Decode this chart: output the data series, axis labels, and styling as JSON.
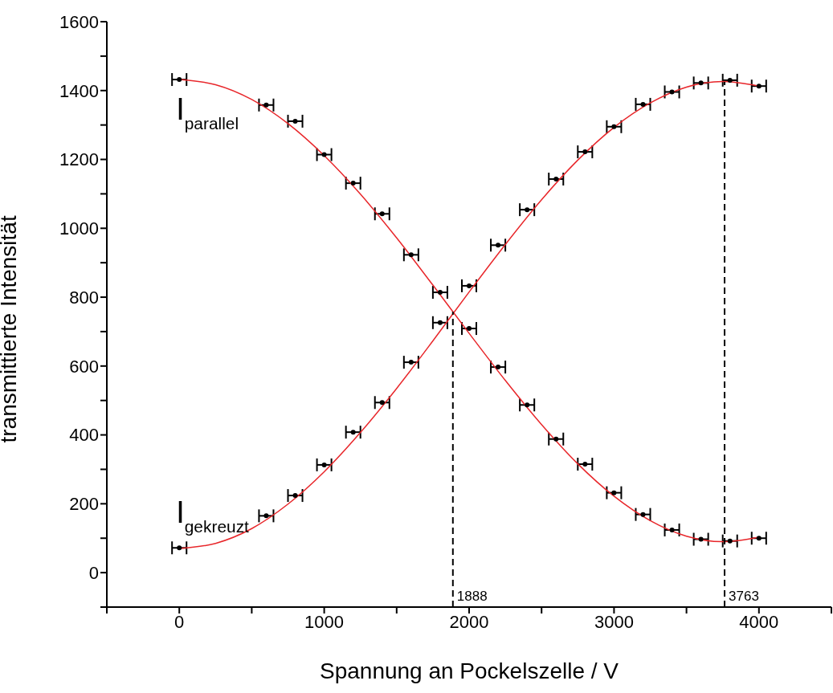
{
  "chart_data": {
    "type": "scatter",
    "xlabel": "Spannung an Pockelszelle / V",
    "ylabel": "transmittierte Intensität",
    "x": [
      0,
      600,
      800,
      1000,
      1200,
      1400,
      1600,
      1800,
      2000,
      2200,
      2400,
      2600,
      2800,
      3000,
      3200,
      3400,
      3600,
      3800,
      4000
    ],
    "series": [
      {
        "color": "#000000",
        "values": [
          1432,
          1358,
          1311,
          1214,
          1131,
          1042,
          923,
          814,
          709,
          597,
          487,
          388,
          315,
          232,
          169,
          124,
          97,
          92,
          100
        ],
        "xerrors": [
          50,
          50,
          50,
          50,
          50,
          50,
          50,
          50,
          50,
          50,
          50,
          50,
          50,
          50,
          50,
          50,
          50,
          50,
          50
        ]
      },
      {
        "color": "#000000",
        "values": [
          72,
          165,
          224,
          313,
          408,
          494,
          611,
          726,
          833,
          951,
          1054,
          1143,
          1222,
          1295,
          1360,
          1396,
          1422,
          1430,
          1413
        ],
        "xerrors": [
          50,
          50,
          50,
          50,
          50,
          50,
          50,
          50,
          50,
          50,
          50,
          50,
          50,
          50,
          50,
          50,
          50,
          50,
          50
        ]
      },
      {
        "type": "line",
        "color": "#e8262a",
        "marker": "none",
        "x": [
          0,
          250,
          500,
          750,
          1000,
          1250,
          1500,
          1750,
          2000,
          2250,
          2500,
          2750,
          3000,
          3250,
          3500,
          3750,
          4000
        ],
        "values": [
          1432,
          1417,
          1374,
          1304,
          1211,
          1099,
          972,
          835,
          695,
          558,
          430,
          316,
          222,
          151,
          106,
          90,
          103
        ]
      },
      {
        "type": "line",
        "color": "#e8262a",
        "marker": "none",
        "x": [
          0,
          250,
          500,
          750,
          1000,
          1250,
          1500,
          1750,
          2000,
          2250,
          2500,
          2750,
          3000,
          3250,
          3500,
          3750,
          4000
        ],
        "values": [
          70,
          85,
          128,
          199,
          293,
          407,
          535,
          673,
          815,
          953,
          1083,
          1198,
          1293,
          1364,
          1410,
          1426,
          1413
        ]
      }
    ],
    "xlim": [
      -500,
      4500
    ],
    "xticks": [
      {
        "value": -500,
        "label": null
      },
      0,
      {
        "value": 500,
        "label": null
      },
      1000,
      {
        "value": 1500,
        "label": null
      },
      2000,
      {
        "value": 2500,
        "label": null
      },
      3000,
      {
        "value": 3500,
        "label": null
      },
      4000,
      {
        "value": 4500,
        "label": null
      }
    ],
    "ylim": [
      -100,
      1600
    ],
    "yticks": [
      {
        "value": -100,
        "label": null
      },
      0,
      {
        "value": 100,
        "label": null
      },
      200,
      {
        "value": 300,
        "label": null
      },
      400,
      {
        "value": 500,
        "label": null
      },
      600,
      {
        "value": 700,
        "label": null
      },
      800,
      {
        "value": 900,
        "label": null
      },
      1000,
      {
        "value": 1100,
        "label": null
      },
      1200,
      {
        "value": 1300,
        "label": null
      },
      1400,
      {
        "value": 1500,
        "label": null
      },
      1600
    ],
    "ref_lines": [
      {
        "axis": "x",
        "value": 1888,
        "label": "1888",
        "color": "#000000",
        "line_style": "dashed"
      },
      {
        "axis": "x",
        "value": 3763,
        "label": "3763",
        "color": "#000000",
        "line_style": "dashed"
      }
    ],
    "annotations": [
      "I$_{parallel}$",
      "I$_{gekreuzt}$"
    ],
    "grid": false,
    "legend": false
  }
}
